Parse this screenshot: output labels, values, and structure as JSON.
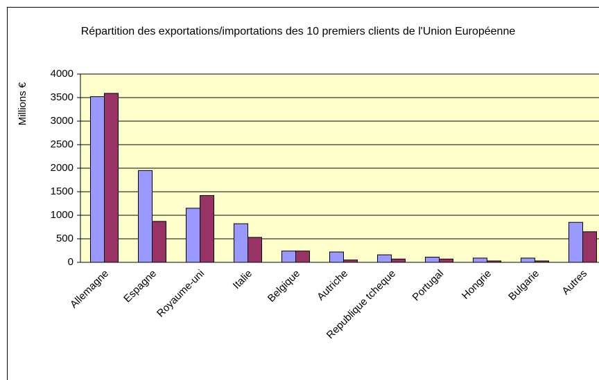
{
  "chart_data": {
    "type": "bar",
    "title": "Répartition des exportations/importations des 10 premiers clients de l'Union Européenne",
    "y_label": "Millions €",
    "categories": [
      "Allemagne",
      "Espagne",
      "Royaume-uni",
      "Italie",
      "Belgique",
      "Autriche",
      "Republique tcheque",
      "Portugal",
      "Hongrie",
      "Bulgarie",
      "Autres"
    ],
    "series": [
      {
        "color": "#9999ff",
        "values": [
          3520,
          1950,
          1150,
          820,
          240,
          220,
          160,
          110,
          90,
          90,
          850
        ]
      },
      {
        "color": "#993366",
        "values": [
          3590,
          870,
          1420,
          530,
          240,
          50,
          70,
          70,
          30,
          30,
          650
        ]
      }
    ],
    "ylim": [
      0,
      4000
    ],
    "yticks": [
      0,
      500,
      1000,
      1500,
      2000,
      2500,
      3000,
      3500,
      4000
    ],
    "grid": true
  }
}
